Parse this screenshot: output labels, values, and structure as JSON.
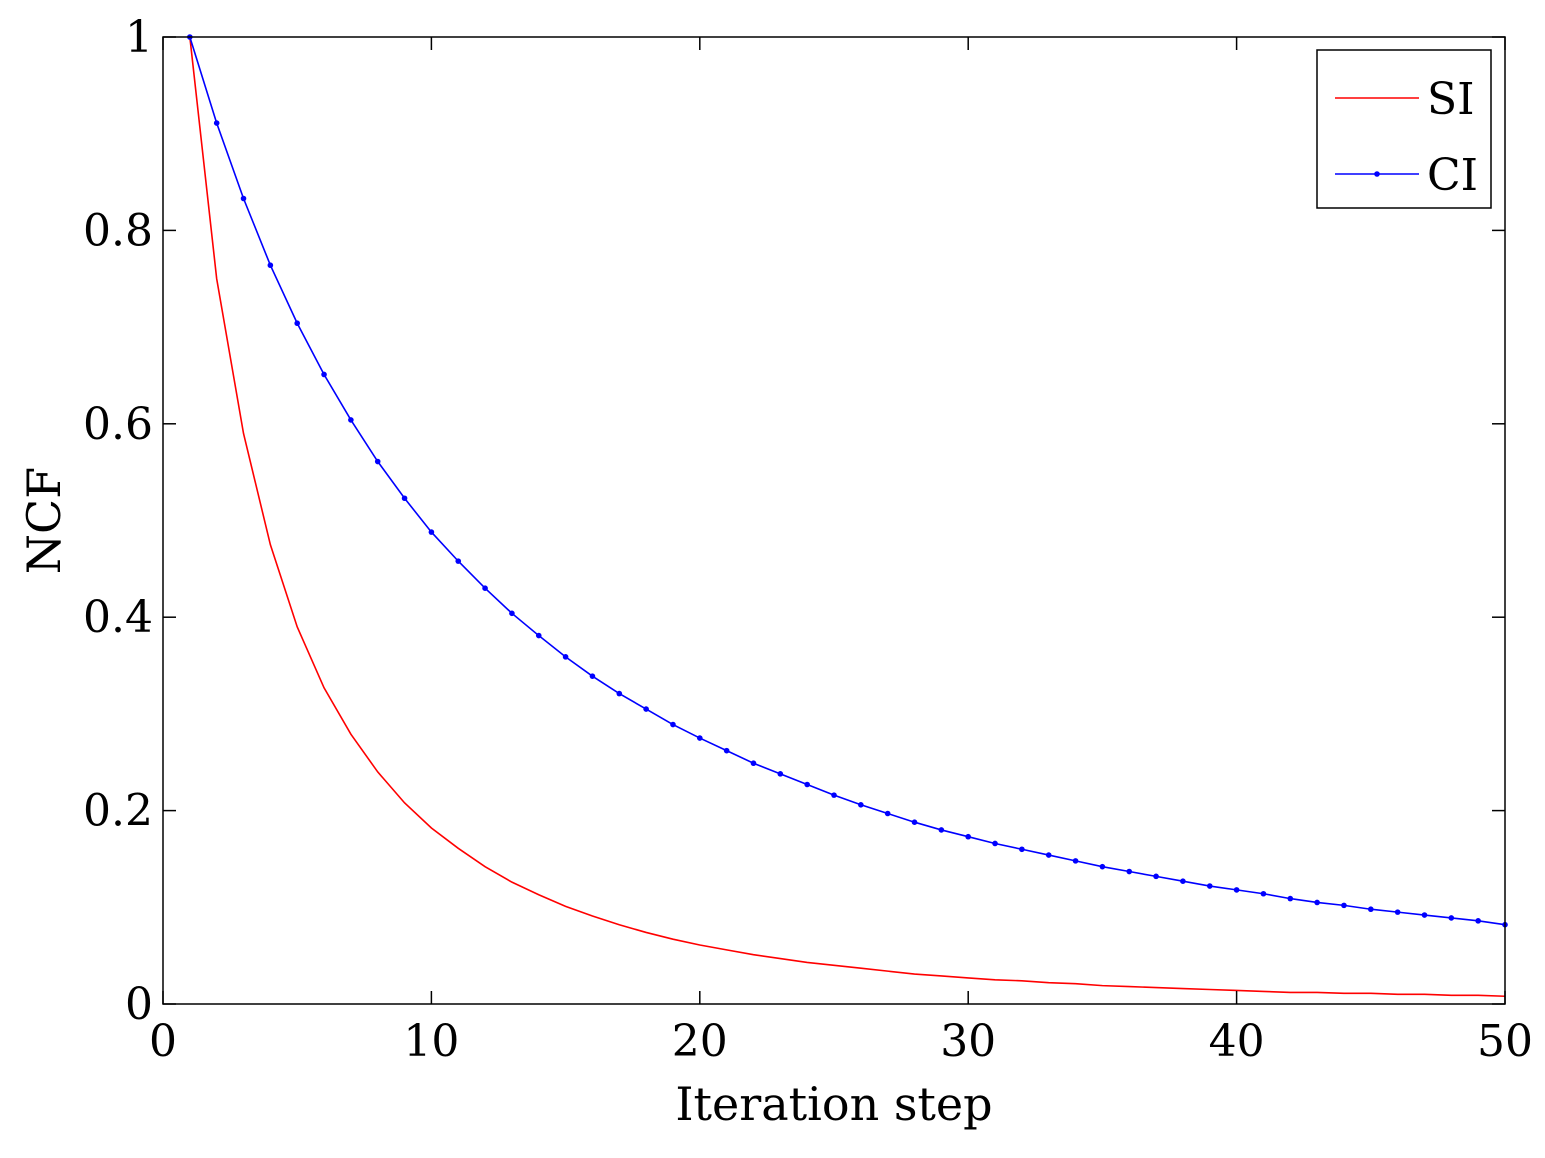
{
  "chart_data": {
    "type": "line",
    "title": "",
    "xlabel": "Iteration step",
    "ylabel": "NCF",
    "xlim": [
      0,
      50
    ],
    "ylim": [
      0,
      1
    ],
    "x_ticks": [
      "0",
      "10",
      "20",
      "30",
      "40",
      "50"
    ],
    "y_ticks": [
      "0",
      "0.2",
      "0.4",
      "0.6",
      "0.8",
      "1"
    ],
    "grid": false,
    "legend_position": "top-right",
    "x": [
      1,
      2,
      3,
      4,
      5,
      6,
      7,
      8,
      9,
      10,
      11,
      12,
      13,
      14,
      15,
      16,
      17,
      18,
      19,
      20,
      21,
      22,
      23,
      24,
      25,
      26,
      27,
      28,
      29,
      30,
      31,
      32,
      33,
      34,
      35,
      36,
      37,
      38,
      39,
      40,
      41,
      42,
      43,
      44,
      45,
      46,
      47,
      48,
      49,
      50
    ],
    "series": [
      {
        "name": "SI",
        "color": "#ff0000",
        "marker": "none",
        "values": [
          1.0,
          0.75,
          0.59,
          0.475,
          0.39,
          0.327,
          0.279,
          0.24,
          0.208,
          0.182,
          0.161,
          0.142,
          0.126,
          0.113,
          0.101,
          0.091,
          0.082,
          0.074,
          0.067,
          0.061,
          0.056,
          0.051,
          0.047,
          0.043,
          0.04,
          0.037,
          0.034,
          0.031,
          0.029,
          0.027,
          0.025,
          0.024,
          0.022,
          0.021,
          0.019,
          0.018,
          0.017,
          0.016,
          0.015,
          0.014,
          0.013,
          0.012,
          0.012,
          0.011,
          0.011,
          0.01,
          0.01,
          0.009,
          0.009,
          0.008
        ]
      },
      {
        "name": "CI",
        "color": "#0000ff",
        "marker": "dot",
        "values": [
          1.0,
          0.911,
          0.833,
          0.764,
          0.704,
          0.651,
          0.604,
          0.561,
          0.523,
          0.488,
          0.458,
          0.43,
          0.404,
          0.381,
          0.359,
          0.339,
          0.321,
          0.305,
          0.289,
          0.275,
          0.262,
          0.249,
          0.238,
          0.227,
          0.216,
          0.206,
          0.197,
          0.188,
          0.18,
          0.173,
          0.166,
          0.16,
          0.154,
          0.148,
          0.142,
          0.137,
          0.132,
          0.127,
          0.122,
          0.118,
          0.114,
          0.109,
          0.105,
          0.102,
          0.098,
          0.095,
          0.092,
          0.089,
          0.086,
          0.082
        ]
      }
    ]
  }
}
